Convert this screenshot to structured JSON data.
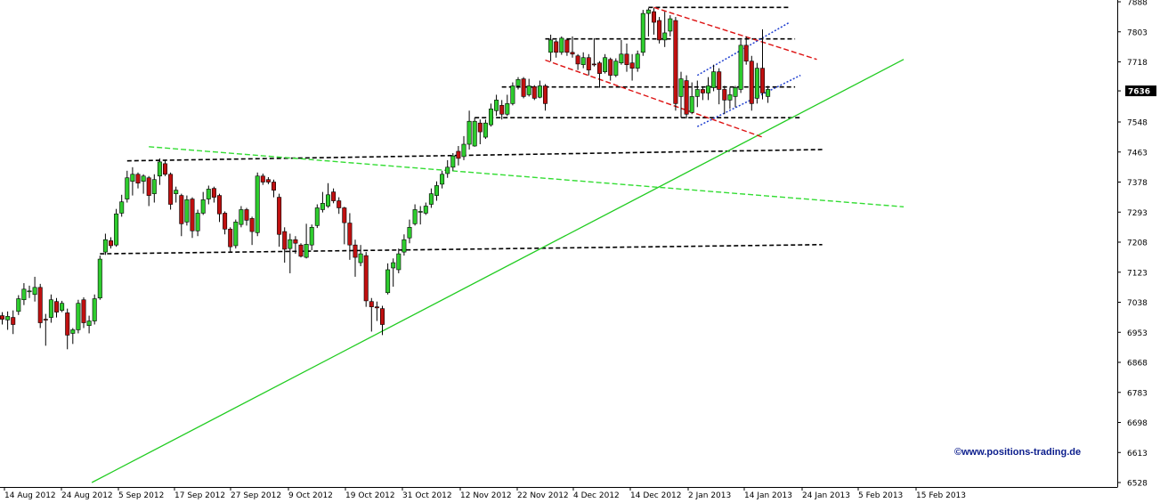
{
  "watermark": "©www.positions-trading.de",
  "chart_data": {
    "type": "candlestick",
    "ylim": [
      6528,
      7888
    ],
    "y_ticks": [
      7888,
      7803,
      7718,
      7636,
      7548,
      7463,
      7378,
      7293,
      7208,
      7123,
      7038,
      6953,
      6868,
      6783,
      6698,
      6613,
      6528
    ],
    "last_price": "7636",
    "x_labels": [
      "14 Aug 2012",
      "24 Aug 2012",
      "5 Sep 2012",
      "17 Sep 2012",
      "27 Sep 2012",
      "9 Oct 2012",
      "19 Oct 2012",
      "31 Oct 2012",
      "12 Nov 2012",
      "22 Nov 2012",
      "4 Dec 2012",
      "14 Dec 2012",
      "2 Jan 2013",
      "14 Jan 2013",
      "24 Jan 2013",
      "5 Feb 2013",
      "15 Feb 2013"
    ],
    "colors": {
      "up": "#2ecc2e",
      "down": "#c01010",
      "trend_solid": "#22cc22",
      "trend_dashed": "#33dd33",
      "support": "#000000",
      "channel_red": "#dd1111",
      "channel_blue": "#1f3fd0"
    },
    "candles": [
      [
        7000,
        6990,
        7010,
        6975
      ],
      [
        6988,
        6998,
        7012,
        6960
      ],
      [
        6995,
        6975,
        7015,
        6948
      ],
      [
        7012,
        7048,
        7058,
        7002
      ],
      [
        7045,
        7075,
        7092,
        7030
      ],
      [
        7070,
        7070,
        7085,
        7050
      ],
      [
        7060,
        7080,
        7110,
        7040
      ],
      [
        7080,
        6980,
        7090,
        6965
      ],
      [
        6990,
        6988,
        7005,
        6915
      ],
      [
        6995,
        7045,
        7060,
        6980
      ],
      [
        7040,
        7010,
        7050,
        6995
      ],
      [
        7015,
        7035,
        7042,
        7010
      ],
      [
        7008,
        6945,
        7020,
        6905
      ],
      [
        6950,
        6960,
        6965,
        6920
      ],
      [
        6960,
        7035,
        7045,
        6950
      ],
      [
        7045,
        6980,
        7052,
        6965
      ],
      [
        6972,
        6985,
        7000,
        6950
      ],
      [
        6985,
        7048,
        7060,
        6975
      ],
      [
        7050,
        7160,
        7170,
        7045
      ],
      [
        7180,
        7215,
        7232,
        7172
      ],
      [
        7212,
        7198,
        7222,
        7190
      ],
      [
        7200,
        7288,
        7302,
        7195
      ],
      [
        7290,
        7322,
        7342,
        7280
      ],
      [
        7330,
        7390,
        7410,
        7320
      ],
      [
        7380,
        7400,
        7420,
        7340
      ],
      [
        7400,
        7375,
        7405,
        7360
      ],
      [
        7380,
        7395,
        7400,
        7345
      ],
      [
        7390,
        7340,
        7395,
        7310
      ],
      [
        7345,
        7385,
        7400,
        7320
      ],
      [
        7395,
        7435,
        7445,
        7370
      ],
      [
        7430,
        7400,
        7440,
        7395
      ],
      [
        7400,
        7315,
        7405,
        7300
      ],
      [
        7345,
        7355,
        7365,
        7320
      ],
      [
        7340,
        7260,
        7345,
        7225
      ],
      [
        7265,
        7328,
        7340,
        7255
      ],
      [
        7330,
        7240,
        7335,
        7220
      ],
      [
        7240,
        7290,
        7300,
        7225
      ],
      [
        7290,
        7328,
        7350,
        7285
      ],
      [
        7330,
        7358,
        7368,
        7315
      ],
      [
        7360,
        7335,
        7365,
        7320
      ],
      [
        7340,
        7288,
        7345,
        7265
      ],
      [
        7290,
        7245,
        7295,
        7230
      ],
      [
        7245,
        7195,
        7250,
        7180
      ],
      [
        7198,
        7265,
        7272,
        7190
      ],
      [
        7258,
        7300,
        7310,
        7250
      ],
      [
        7300,
        7270,
        7305,
        7255
      ],
      [
        7275,
        7238,
        7280,
        7200
      ],
      [
        7235,
        7395,
        7405,
        7225
      ],
      [
        7395,
        7378,
        7402,
        7370
      ],
      [
        7385,
        7378,
        7392,
        7372
      ],
      [
        7378,
        7355,
        7385,
        7335
      ],
      [
        7335,
        7230,
        7345,
        7195
      ],
      [
        7238,
        7188,
        7250,
        7150
      ],
      [
        7190,
        7215,
        7232,
        7120
      ],
      [
        7215,
        7205,
        7225,
        7175
      ],
      [
        7200,
        7168,
        7205,
        7165
      ],
      [
        7165,
        7202,
        7260,
        7162
      ],
      [
        7200,
        7250,
        7258,
        7185
      ],
      [
        7255,
        7305,
        7315,
        7248
      ],
      [
        7300,
        7318,
        7350,
        7292
      ],
      [
        7310,
        7342,
        7375,
        7305
      ],
      [
        7350,
        7325,
        7360,
        7318
      ],
      [
        7325,
        7305,
        7335,
        7288
      ],
      [
        7305,
        7263,
        7308,
        7202
      ],
      [
        7262,
        7200,
        7290,
        7158
      ],
      [
        7200,
        7165,
        7215,
        7110
      ],
      [
        7150,
        7175,
        7200,
        7140
      ],
      [
        7170,
        7042,
        7180,
        7025
      ],
      [
        7040,
        7025,
        7050,
        6955
      ],
      [
        7025,
        7022,
        7040,
        6985
      ],
      [
        7020,
        6975,
        7028,
        6945
      ],
      [
        7065,
        7130,
        7148,
        7060
      ],
      [
        7135,
        7150,
        7162,
        7082
      ],
      [
        7130,
        7175,
        7190,
        7120
      ],
      [
        7180,
        7215,
        7230,
        7170
      ],
      [
        7220,
        7250,
        7272,
        7205
      ],
      [
        7260,
        7300,
        7315,
        7255
      ],
      [
        7295,
        7295,
        7310,
        7258
      ],
      [
        7290,
        7310,
        7320,
        7285
      ],
      [
        7315,
        7345,
        7360,
        7305
      ],
      [
        7340,
        7368,
        7380,
        7325
      ],
      [
        7372,
        7400,
        7410,
        7360
      ],
      [
        7402,
        7420,
        7440,
        7390
      ],
      [
        7420,
        7452,
        7460,
        7410
      ],
      [
        7465,
        7445,
        7480,
        7425
      ],
      [
        7450,
        7485,
        7508,
        7440
      ],
      [
        7485,
        7550,
        7580,
        7470
      ],
      [
        7480,
        7550,
        7560,
        7478
      ],
      [
        7545,
        7520,
        7555,
        7485
      ],
      [
        7505,
        7545,
        7555,
        7500
      ],
      [
        7540,
        7585,
        7600,
        7535
      ],
      [
        7580,
        7610,
        7625,
        7565
      ],
      [
        7595,
        7570,
        7610,
        7555
      ],
      [
        7570,
        7600,
        7625,
        7565
      ],
      [
        7600,
        7650,
        7660,
        7595
      ],
      [
        7650,
        7668,
        7675,
        7640
      ],
      [
        7670,
        7620,
        7675,
        7615
      ],
      [
        7625,
        7650,
        7670,
        7620
      ],
      [
        7648,
        7615,
        7652,
        7610
      ],
      [
        7618,
        7650,
        7665,
        7615
      ],
      [
        7650,
        7600,
        7655,
        7580
      ],
      [
        7745,
        7780,
        7795,
        7720
      ],
      [
        7775,
        7745,
        7780,
        7730
      ],
      [
        7745,
        7785,
        7790,
        7738
      ],
      [
        7780,
        7745,
        7785,
        7735
      ],
      [
        7745,
        7740,
        7790,
        7730
      ],
      [
        7735,
        7712,
        7740,
        7695
      ],
      [
        7710,
        7730,
        7745,
        7700
      ],
      [
        7730,
        7695,
        7740,
        7680
      ],
      [
        7712,
        7710,
        7785,
        7705
      ],
      [
        7715,
        7685,
        7720,
        7645
      ],
      [
        7690,
        7730,
        7740,
        7685
      ],
      [
        7725,
        7680,
        7730,
        7665
      ],
      [
        7680,
        7720,
        7728,
        7675
      ],
      [
        7715,
        7740,
        7780,
        7710
      ],
      [
        7740,
        7710,
        7770,
        7690
      ],
      [
        7715,
        7700,
        7740,
        7665
      ],
      [
        7700,
        7740,
        7750,
        7690
      ],
      [
        7745,
        7855,
        7865,
        7735
      ],
      [
        7855,
        7865,
        7870,
        7790
      ],
      [
        7860,
        7830,
        7870,
        7795
      ],
      [
        7835,
        7780,
        7845,
        7770
      ],
      [
        7780,
        7800,
        7860,
        7760
      ],
      [
        7805,
        7840,
        7850,
        7790
      ],
      [
        7835,
        7600,
        7845,
        7580
      ],
      [
        7620,
        7670,
        7690,
        7560
      ],
      [
        7665,
        7570,
        7680,
        7558
      ],
      [
        7575,
        7620,
        7660,
        7570
      ],
      [
        7620,
        7640,
        7665,
        7590
      ],
      [
        7640,
        7630,
        7648,
        7610
      ],
      [
        7630,
        7650,
        7675,
        7610
      ],
      [
        7645,
        7690,
        7710,
        7635
      ],
      [
        7690,
        7640,
        7700,
        7598
      ],
      [
        7640,
        7610,
        7650,
        7570
      ],
      [
        7610,
        7625,
        7645,
        7585
      ],
      [
        7620,
        7645,
        7650,
        7590
      ],
      [
        7640,
        7765,
        7780,
        7630
      ],
      [
        7765,
        7720,
        7790,
        7710
      ],
      [
        7720,
        7600,
        7735,
        7580
      ],
      [
        7615,
        7700,
        7715,
        7600
      ],
      [
        7700,
        7630,
        7810,
        7612
      ],
      [
        7620,
        7640,
        7650,
        7602
      ]
    ],
    "horizontal_levels": [
      {
        "name": "resistance-top",
        "from_index": 119,
        "to_index": 145,
        "value": 7872
      },
      {
        "name": "resistance-7780",
        "from_index": 100,
        "to_index": 146,
        "value": 7783
      },
      {
        "name": "mid-7647",
        "from_index": 92,
        "to_index": 146,
        "value": 7647
      },
      {
        "name": "support-7560",
        "from_index": 87,
        "to_index": 147,
        "value": 7560
      },
      {
        "name": "support-7440-7470",
        "from_index": 23,
        "to_index": 151,
        "value_start": 7438,
        "value_end": 7470
      },
      {
        "name": "support-7175-7200",
        "from_index": 18,
        "to_index": 151,
        "value_start": 7175,
        "value_end": 7201
      }
    ],
    "trendlines": [
      {
        "name": "long-uptrend",
        "style": "solid",
        "color": "#22cc22",
        "from": {
          "index": 16.5,
          "value": 6528
        },
        "to": {
          "index": 166,
          "value": 7725
        }
      },
      {
        "name": "downtrend-dashed",
        "style": "dashed",
        "color": "#33dd33",
        "from": {
          "index": 27,
          "value": 7478
        },
        "to": {
          "index": 166,
          "value": 7308
        }
      },
      {
        "name": "red-channel-upper",
        "style": "dashed",
        "color": "#dd1111",
        "from": {
          "index": 120,
          "value": 7872
        },
        "to": {
          "index": 150,
          "value": 7725
        }
      },
      {
        "name": "red-channel-lower",
        "style": "dashed",
        "color": "#dd1111",
        "from": {
          "index": 100,
          "value": 7723
        },
        "to": {
          "index": 140,
          "value": 7505
        }
      },
      {
        "name": "blue-channel-upper",
        "style": "dotted",
        "color": "#1f3fd0",
        "from": {
          "index": 128,
          "value": 7680
        },
        "to": {
          "index": 145,
          "value": 7830
        }
      },
      {
        "name": "blue-channel-lower",
        "style": "dotted",
        "color": "#1f3fd0",
        "from": {
          "index": 128,
          "value": 7535
        },
        "to": {
          "index": 147,
          "value": 7680
        }
      }
    ]
  }
}
